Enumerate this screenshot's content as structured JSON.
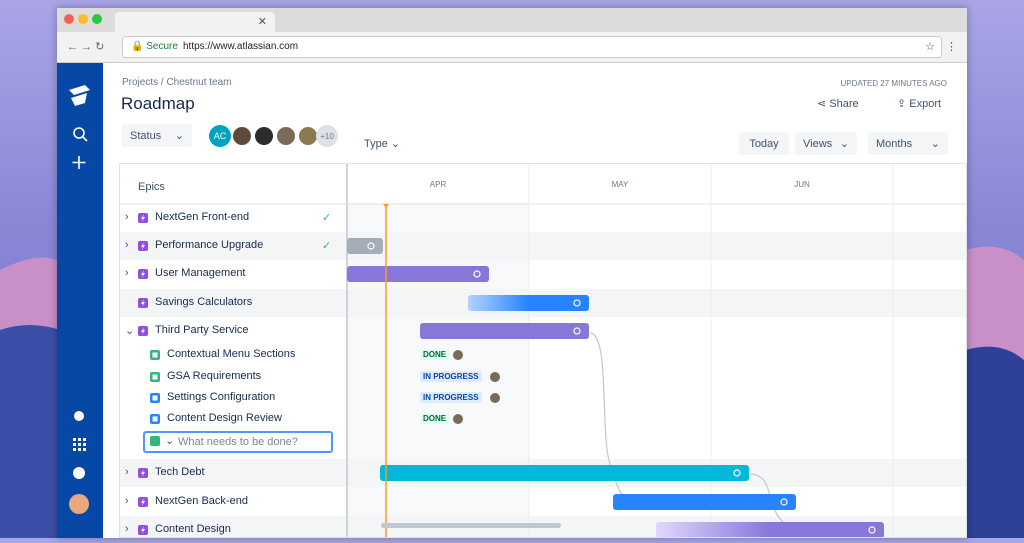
{
  "browser": {
    "secure": "Secure",
    "url": "https://www.atlassian.com"
  },
  "header": {
    "breadcrumb": "Projects / Chestnut team",
    "title": "Roadmap",
    "updated": "UPDATED 27 MINUTES AGO",
    "share": "Share",
    "export": "Export"
  },
  "toolbar": {
    "status": "Status",
    "avatar_initials": "AC",
    "more_people": "+10",
    "type": "Type",
    "today": "Today",
    "views": "Views",
    "months": "Months"
  },
  "timeline": {
    "epics_header": "Epics",
    "months": [
      "APR",
      "MAY",
      "JUN"
    ]
  },
  "rows": [
    {
      "label": "NextGen Front-end"
    },
    {
      "label": "Performance Upgrade"
    },
    {
      "label": "User Management"
    },
    {
      "label": "Savings Calculators"
    },
    {
      "label": "Third Party Service"
    },
    {
      "label": "Contextual Menu Sections",
      "status": "DONE"
    },
    {
      "label": "GSA Requirements",
      "status": "IN PROGRESS"
    },
    {
      "label": "Settings Configuration",
      "status": "IN PROGRESS"
    },
    {
      "label": "Content Design Review",
      "status": "DONE"
    },
    {
      "label": "Tech Debt"
    },
    {
      "label": "NextGen Back-end"
    },
    {
      "label": "Content Design"
    }
  ],
  "new_issue_placeholder": "What needs to be done?"
}
